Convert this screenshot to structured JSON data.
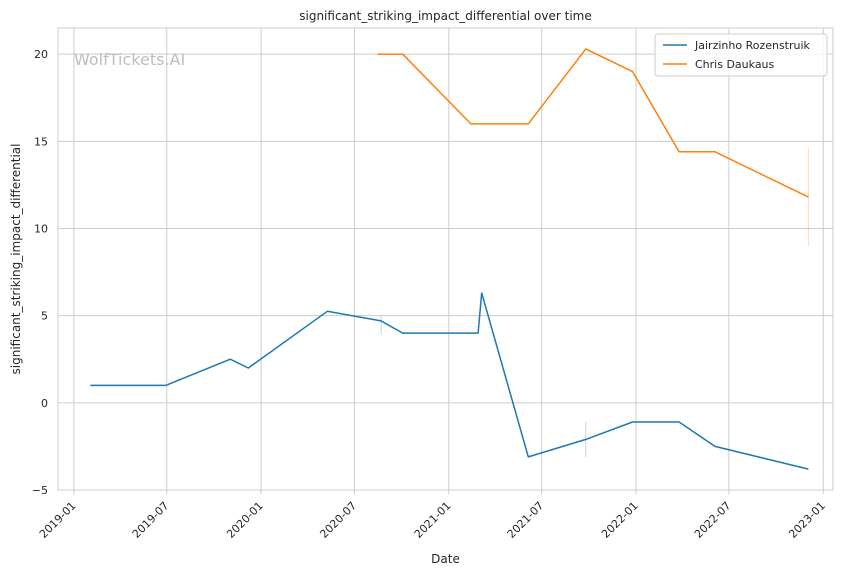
{
  "chart_data": {
    "type": "line",
    "title": "significant_striking_impact_differential over time",
    "xlabel": "Date",
    "ylabel": "significant_striking_impact_differential",
    "watermark": "WolfTickets.AI",
    "xlim": [
      "2018-12-01",
      "2023-01-20"
    ],
    "ylim": [
      -5,
      21.5
    ],
    "x_ticks": [
      "2019-01",
      "2019-07",
      "2020-01",
      "2020-07",
      "2021-01",
      "2021-07",
      "2022-01",
      "2022-07",
      "2023-01"
    ],
    "y_ticks": [
      -5,
      0,
      5,
      10,
      15,
      20
    ],
    "grid": true,
    "legend_position": "top-right",
    "series": [
      {
        "name": "Jairzinho Rozenstruik",
        "color": "#1f77b4",
        "x": [
          "2019-02-02",
          "2019-06-29",
          "2019-11-02",
          "2019-12-07",
          "2020-05-09",
          "2020-08-22",
          "2020-10-03",
          "2021-02-27",
          "2021-03-06",
          "2021-06-05",
          "2021-09-25",
          "2021-12-25",
          "2022-03-26",
          "2022-06-04",
          "2022-12-03"
        ],
        "y": [
          1.0,
          1.0,
          2.5,
          2.0,
          5.25,
          4.7,
          4.0,
          4.0,
          6.3,
          -3.1,
          -2.1,
          -1.1,
          -1.1,
          -2.5,
          -3.8
        ]
      },
      {
        "name": "Chris Daukaus",
        "color": "#ff7f0e",
        "x": [
          "2020-08-15",
          "2020-10-03",
          "2021-02-13",
          "2021-06-05",
          "2021-09-25",
          "2021-12-25",
          "2022-03-26",
          "2022-06-04",
          "2022-12-03"
        ],
        "y": [
          20.0,
          20.0,
          16.0,
          16.0,
          20.3,
          19.0,
          14.4,
          14.4,
          11.8
        ]
      }
    ],
    "error_bars": [
      {
        "series": 0,
        "x": "2020-08-22",
        "low": 3.9,
        "high": 5.0
      },
      {
        "series": 0,
        "x": "2021-09-25",
        "low": -3.1,
        "high": -1.1
      },
      {
        "series": 1,
        "x": "2022-12-03",
        "low": 9.0,
        "high": 14.6
      }
    ]
  }
}
